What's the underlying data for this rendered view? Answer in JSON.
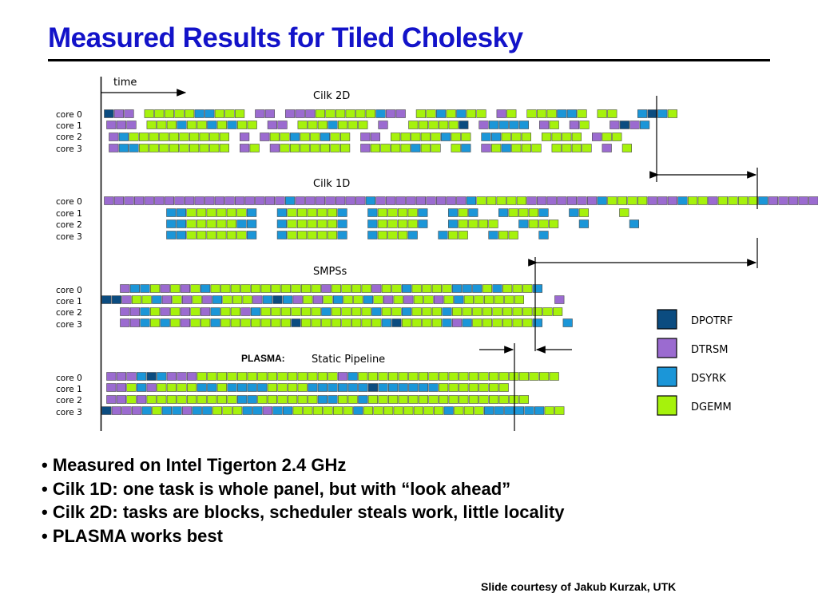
{
  "title": "Measured Results for Tiled Cholesky",
  "diagram": {
    "time_label": "time",
    "core_labels": [
      "core 0",
      "core 1",
      "core 2",
      "core 3"
    ],
    "sections": [
      {
        "id": "cilk2d",
        "title": "Cilk 2D",
        "prefix": ""
      },
      {
        "id": "cilk1d",
        "title": "Cilk 1D",
        "prefix": ""
      },
      {
        "id": "smpss",
        "title": "SMPSs",
        "prefix": ""
      },
      {
        "id": "plasma",
        "title": "Static Pipeline",
        "prefix": "PLASMA:"
      }
    ],
    "legend": [
      {
        "name": "DPOTRF",
        "color": "#0b4c80"
      },
      {
        "name": "DTRSM",
        "color": "#9b6bd0"
      },
      {
        "name": "DSYRK",
        "color": "#1b96d8"
      },
      {
        "name": "DGEMM",
        "color": "#a6f20c"
      }
    ]
  },
  "bullets": [
    "• Measured on Intel Tigerton 2.4 GHz",
    "• Cilk 1D: one task is whole panel, but with “look ahead”",
    "• Cilk 2D: tasks are blocks, scheduler steals work, little locality",
    "• PLASMA works best"
  ],
  "credit": "Slide courtesy of Jakub Kurzak, UTK"
}
